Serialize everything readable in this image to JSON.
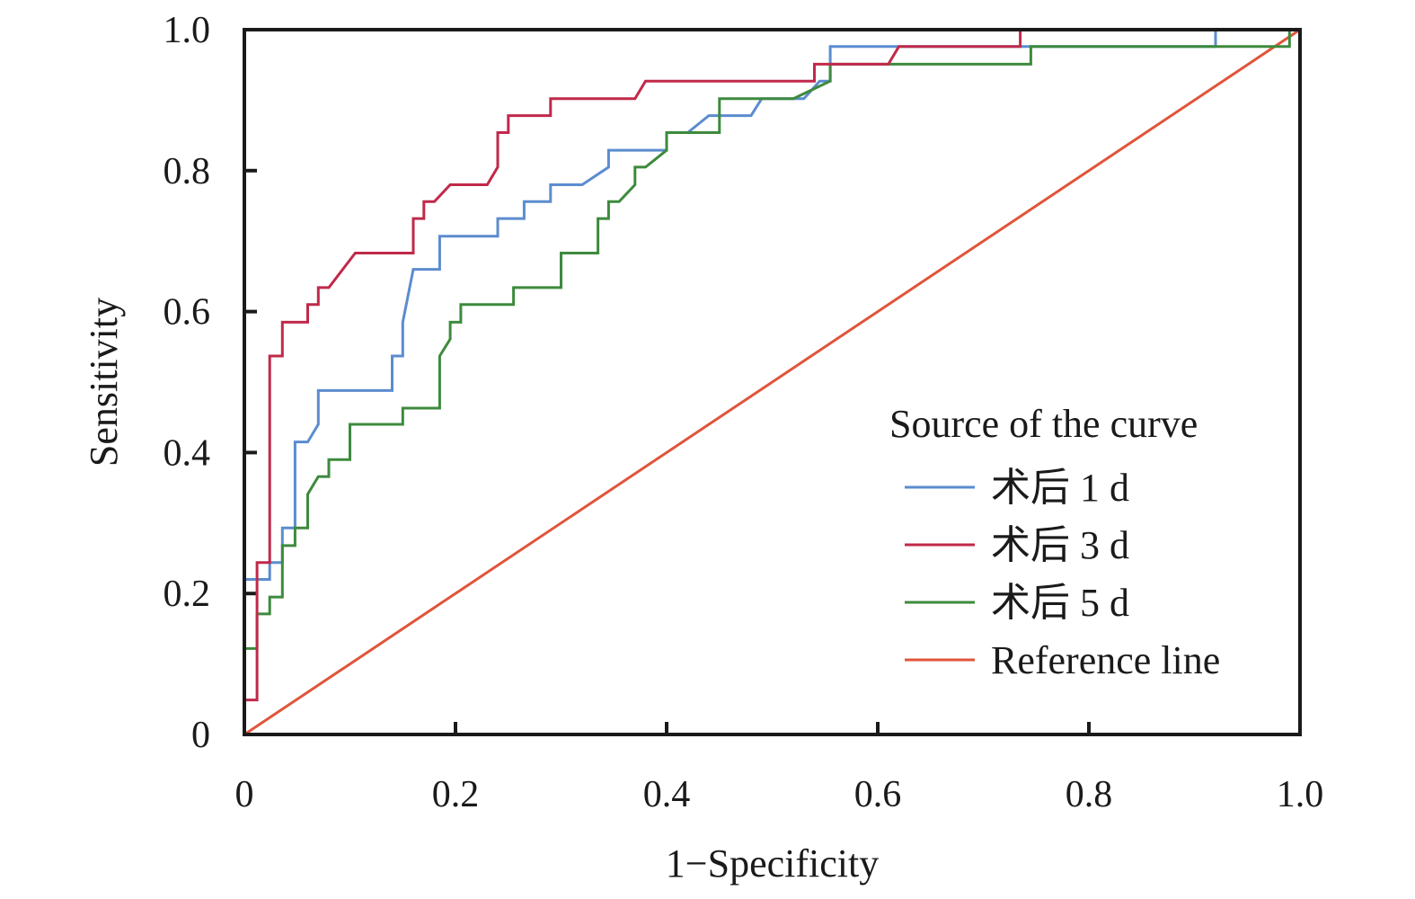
{
  "chart_data": {
    "type": "line",
    "xlabel": "1−Specificity",
    "ylabel": "Sensitivity",
    "xlim": [
      0,
      1
    ],
    "ylim": [
      0,
      1
    ],
    "x_ticks": [
      "0",
      "0.2",
      "0.4",
      "0.6",
      "0.8",
      "1.0"
    ],
    "y_ticks": [
      "0",
      "0.2",
      "0.4",
      "0.6",
      "0.8",
      "1.0"
    ],
    "grid": false,
    "legend_placement": "lower-right",
    "legend_title": "Source of the curve",
    "series": [
      {
        "name": "术后 1 d",
        "color": "#5b8ccf",
        "points": [
          [
            0,
            0
          ],
          [
            0,
            0.22
          ],
          [
            0.024,
            0.22
          ],
          [
            0.024,
            0.244
          ],
          [
            0.036,
            0.244
          ],
          [
            0.036,
            0.293
          ],
          [
            0.048,
            0.293
          ],
          [
            0.048,
            0.415
          ],
          [
            0.06,
            0.415
          ],
          [
            0.07,
            0.44
          ],
          [
            0.07,
            0.488
          ],
          [
            0.14,
            0.488
          ],
          [
            0.14,
            0.537
          ],
          [
            0.15,
            0.537
          ],
          [
            0.15,
            0.585
          ],
          [
            0.16,
            0.66
          ],
          [
            0.185,
            0.66
          ],
          [
            0.185,
            0.707
          ],
          [
            0.24,
            0.707
          ],
          [
            0.24,
            0.732
          ],
          [
            0.265,
            0.732
          ],
          [
            0.265,
            0.756
          ],
          [
            0.29,
            0.756
          ],
          [
            0.29,
            0.78
          ],
          [
            0.32,
            0.78
          ],
          [
            0.345,
            0.805
          ],
          [
            0.345,
            0.829
          ],
          [
            0.4,
            0.829
          ],
          [
            0.4,
            0.854
          ],
          [
            0.42,
            0.854
          ],
          [
            0.44,
            0.878
          ],
          [
            0.48,
            0.878
          ],
          [
            0.49,
            0.902
          ],
          [
            0.53,
            0.902
          ],
          [
            0.545,
            0.927
          ],
          [
            0.555,
            0.927
          ],
          [
            0.555,
            0.976
          ],
          [
            0.92,
            0.976
          ],
          [
            0.92,
            1.0
          ],
          [
            1.0,
            1.0
          ]
        ]
      },
      {
        "name": "术后 3 d",
        "color": "#c0294a",
        "points": [
          [
            0,
            0
          ],
          [
            0,
            0.049
          ],
          [
            0.012,
            0.049
          ],
          [
            0.012,
            0.244
          ],
          [
            0.024,
            0.244
          ],
          [
            0.024,
            0.537
          ],
          [
            0.036,
            0.537
          ],
          [
            0.036,
            0.585
          ],
          [
            0.06,
            0.585
          ],
          [
            0.06,
            0.61
          ],
          [
            0.07,
            0.61
          ],
          [
            0.07,
            0.634
          ],
          [
            0.08,
            0.634
          ],
          [
            0.105,
            0.683
          ],
          [
            0.16,
            0.683
          ],
          [
            0.16,
            0.732
          ],
          [
            0.17,
            0.732
          ],
          [
            0.17,
            0.756
          ],
          [
            0.18,
            0.756
          ],
          [
            0.195,
            0.78
          ],
          [
            0.23,
            0.78
          ],
          [
            0.24,
            0.805
          ],
          [
            0.24,
            0.854
          ],
          [
            0.25,
            0.854
          ],
          [
            0.25,
            0.878
          ],
          [
            0.29,
            0.878
          ],
          [
            0.29,
            0.902
          ],
          [
            0.37,
            0.902
          ],
          [
            0.38,
            0.927
          ],
          [
            0.54,
            0.927
          ],
          [
            0.54,
            0.951
          ],
          [
            0.61,
            0.951
          ],
          [
            0.62,
            0.976
          ],
          [
            0.735,
            0.976
          ],
          [
            0.735,
            1.0
          ],
          [
            1.0,
            1.0
          ]
        ]
      },
      {
        "name": "术后 5 d",
        "color": "#3d8a3d",
        "points": [
          [
            0,
            0
          ],
          [
            0,
            0.122
          ],
          [
            0.012,
            0.122
          ],
          [
            0.012,
            0.171
          ],
          [
            0.024,
            0.171
          ],
          [
            0.024,
            0.195
          ],
          [
            0.036,
            0.195
          ],
          [
            0.036,
            0.268
          ],
          [
            0.048,
            0.268
          ],
          [
            0.048,
            0.293
          ],
          [
            0.06,
            0.293
          ],
          [
            0.06,
            0.341
          ],
          [
            0.07,
            0.366
          ],
          [
            0.08,
            0.366
          ],
          [
            0.08,
            0.39
          ],
          [
            0.1,
            0.39
          ],
          [
            0.1,
            0.44
          ],
          [
            0.15,
            0.44
          ],
          [
            0.15,
            0.463
          ],
          [
            0.185,
            0.463
          ],
          [
            0.185,
            0.537
          ],
          [
            0.195,
            0.561
          ],
          [
            0.195,
            0.585
          ],
          [
            0.205,
            0.585
          ],
          [
            0.205,
            0.61
          ],
          [
            0.255,
            0.61
          ],
          [
            0.255,
            0.634
          ],
          [
            0.3,
            0.634
          ],
          [
            0.3,
            0.683
          ],
          [
            0.335,
            0.683
          ],
          [
            0.335,
            0.732
          ],
          [
            0.345,
            0.732
          ],
          [
            0.345,
            0.756
          ],
          [
            0.355,
            0.756
          ],
          [
            0.37,
            0.78
          ],
          [
            0.37,
            0.805
          ],
          [
            0.38,
            0.805
          ],
          [
            0.4,
            0.829
          ],
          [
            0.4,
            0.854
          ],
          [
            0.45,
            0.854
          ],
          [
            0.45,
            0.902
          ],
          [
            0.52,
            0.902
          ],
          [
            0.555,
            0.927
          ],
          [
            0.555,
            0.951
          ],
          [
            0.745,
            0.951
          ],
          [
            0.745,
            0.976
          ],
          [
            0.99,
            0.976
          ],
          [
            0.99,
            1.0
          ],
          [
            1.0,
            1.0
          ]
        ]
      },
      {
        "name": "Reference line",
        "color": "#e0553a",
        "points": [
          [
            0,
            0
          ],
          [
            1,
            1
          ]
        ]
      }
    ]
  }
}
